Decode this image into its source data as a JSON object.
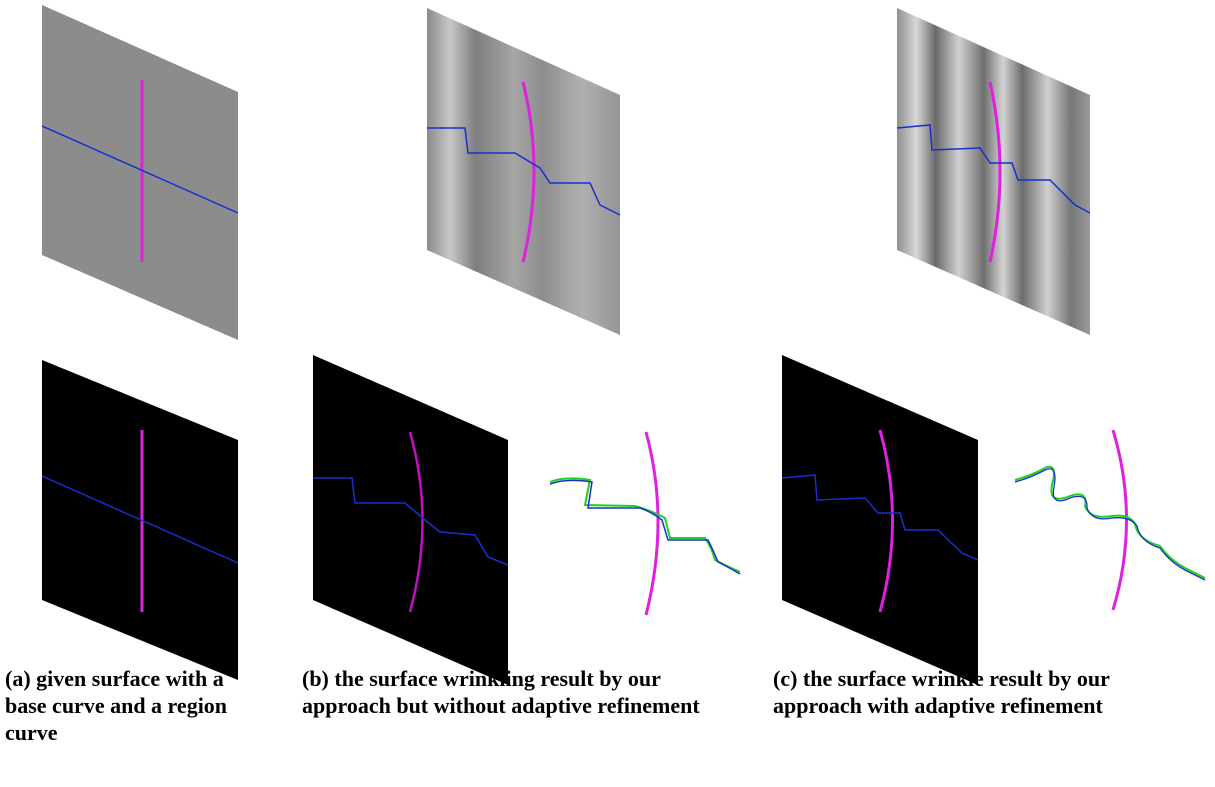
{
  "captions": [
    "(a) given surface with a base curve and a region curve",
    "(b) the surface wrinkling result by our approach but without adaptive refinement",
    "(c) the surface wrinkle result by our approach with adaptive refinement"
  ]
}
